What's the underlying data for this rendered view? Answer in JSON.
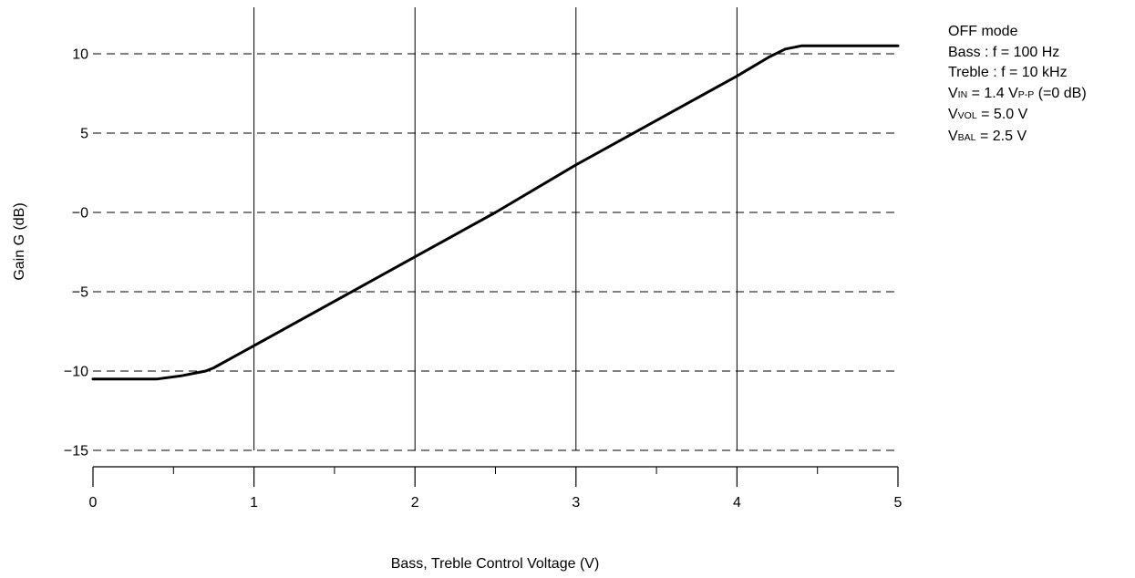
{
  "chart_data": {
    "type": "line",
    "xlabel": "Bass, Treble Control Voltage (V)",
    "ylabel": "Gain G (dB)",
    "xlim": [
      0,
      5
    ],
    "ylim": [
      -15,
      10
    ],
    "x_ticks": [
      "0",
      "1",
      "2",
      "3",
      "4",
      "5"
    ],
    "y_ticks": [
      {
        "value": 10,
        "label": "10"
      },
      {
        "value": 5,
        "label": "5"
      },
      {
        "value": 0,
        "label": "−0"
      },
      {
        "value": -5,
        "label": "−5"
      },
      {
        "value": -10,
        "label": "−10"
      },
      {
        "value": -15,
        "label": "−15"
      }
    ],
    "grid": "dashed horizontal at y ticks; solid vertical at x ticks",
    "series": [
      {
        "x": [
          0,
          0.4,
          0.55,
          0.7,
          0.75,
          1.0,
          2.0,
          2.5,
          3.0,
          4.0,
          4.1,
          4.2,
          4.3,
          4.4,
          5.0
        ],
        "y": [
          -10.5,
          -10.5,
          -10.3,
          -10.0,
          -9.8,
          -8.4,
          -2.8,
          0.0,
          3.0,
          8.6,
          9.2,
          9.8,
          10.3,
          10.5,
          10.5
        ]
      }
    ],
    "line_color": "#000000"
  },
  "notes": {
    "mode": "OFF mode",
    "bass": "Bass : f = 100 Hz",
    "treble": "Treble : f = 10 kHz",
    "vin": {
      "main": "V",
      "sub": "IN",
      "mid": " = 1.4 V",
      "sub2": "P-P",
      "tail": " (=0 dB)"
    },
    "vvol": {
      "main": "V",
      "sub": "VOL",
      "tail": " = 5.0 V"
    },
    "vbal": {
      "main": "V",
      "sub": "BAL",
      "tail": " = 2.5 V"
    }
  }
}
